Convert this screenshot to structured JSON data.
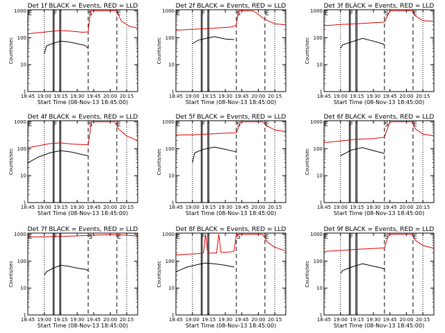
{
  "figure": {
    "shared_xlabel": "Start Time (08-Nov-13 18:45:00)",
    "shared_ylabel": "Counts/sec",
    "y_ticks": [
      "1",
      "10",
      "100",
      "1000"
    ],
    "x_ticks": [
      "18:45",
      "19:00",
      "19:15",
      "19:30",
      "19:45",
      "20:00",
      "20:15"
    ]
  },
  "chart_data": [
    {
      "type": "line",
      "title": "Det 1f BLACK = Events, RED = LLD",
      "xlabel": "Start Time (08-Nov-13 18:45:00)",
      "ylabel": "Counts/sec",
      "y_scale": "log",
      "ylim": [
        1,
        1100
      ],
      "x_ticks": [
        "18:45",
        "19:00",
        "19:15",
        "19:30",
        "19:45",
        "20:00",
        "20:15"
      ],
      "x_range": [
        "18:45",
        "20:25"
      ],
      "markers": [
        "E",
        "F",
        "S",
        "E"
      ],
      "series": [
        {
          "name": "Events",
          "color": "#000000",
          "points": [
            [
              "19:00",
              25
            ],
            [
              "19:02",
              50
            ],
            [
              "19:08",
              62
            ],
            [
              "19:15",
              75
            ],
            [
              "19:22",
              70
            ],
            [
              "19:30",
              60
            ],
            [
              "19:37",
              52
            ],
            [
              "19:40",
              40
            ]
          ]
        },
        {
          "name": "LLD",
          "color": "#dd0000",
          "points": [
            [
              "18:45",
              140
            ],
            [
              "18:55",
              155
            ],
            [
              "19:05",
              170
            ],
            [
              "19:15",
              185
            ],
            [
              "19:25",
              175
            ],
            [
              "19:35",
              160
            ],
            [
              "19:40",
              165
            ],
            [
              "19:42",
              1000
            ],
            [
              "20:06",
              1000
            ],
            [
              "20:10",
              420
            ],
            [
              "20:18",
              260
            ],
            [
              "20:25",
              230
            ]
          ]
        }
      ]
    },
    {
      "type": "line",
      "title": "Det 2f BLACK = Events, RED = LLD",
      "xlabel": "Start Time (08-Nov-13 18:45:00)",
      "ylabel": "Counts/sec",
      "y_scale": "log",
      "ylim": [
        1,
        1100
      ],
      "x_ticks": [
        "18:45",
        "19:00",
        "19:15",
        "19:30",
        "19:45",
        "20:00",
        "20:15"
      ],
      "x_range": [
        "18:45",
        "20:25"
      ],
      "markers": [
        "E",
        "F",
        "S",
        "E"
      ],
      "series": [
        {
          "name": "Events",
          "color": "#000000",
          "points": [
            [
              "19:00",
              60
            ],
            [
              "19:05",
              80
            ],
            [
              "19:10",
              90
            ],
            [
              "19:20",
              110
            ],
            [
              "19:30",
              90
            ],
            [
              "19:38",
              85
            ]
          ]
        },
        {
          "name": "LLD",
          "color": "#dd0000",
          "points": [
            [
              "18:45",
              190
            ],
            [
              "19:00",
              205
            ],
            [
              "19:15",
              220
            ],
            [
              "19:25",
              235
            ],
            [
              "19:35",
              250
            ],
            [
              "19:40",
              290
            ],
            [
              "19:42",
              1000
            ],
            [
              "19:55",
              1000
            ],
            [
              "19:58",
              850
            ],
            [
              "20:06",
              480
            ],
            [
              "20:15",
              330
            ],
            [
              "20:25",
              300
            ]
          ]
        }
      ]
    },
    {
      "type": "line",
      "title": "Det 3f BLACK = Events, RED = LLD",
      "xlabel": "Start Time (08-Nov-13 18:45:00)",
      "ylabel": "Counts/sec",
      "y_scale": "log",
      "ylim": [
        1,
        1100
      ],
      "x_ticks": [
        "18:45",
        "19:00",
        "19:15",
        "19:30",
        "19:45",
        "20:00",
        "20:15"
      ],
      "x_range": [
        "18:45",
        "20:25"
      ],
      "markers": [
        "E",
        "F",
        "S",
        "E"
      ],
      "series": [
        {
          "name": "Events",
          "color": "#000000",
          "points": [
            [
              "19:00",
              40
            ],
            [
              "19:02",
              55
            ],
            [
              "19:10",
              70
            ],
            [
              "19:20",
              95
            ],
            [
              "19:30",
              75
            ],
            [
              "19:38",
              60
            ],
            [
              "19:40",
              55
            ]
          ]
        },
        {
          "name": "LLD",
          "color": "#dd0000",
          "points": [
            [
              "18:45",
              280
            ],
            [
              "19:00",
              310
            ],
            [
              "19:15",
              330
            ],
            [
              "19:30",
              360
            ],
            [
              "19:40",
              380
            ],
            [
              "19:45",
              1000
            ],
            [
              "20:06",
              1000
            ],
            [
              "20:08",
              650
            ],
            [
              "20:15",
              430
            ],
            [
              "20:25",
              410
            ]
          ]
        }
      ]
    },
    {
      "type": "line",
      "title": "Det 4f BLACK = Events, RED = LLD",
      "xlabel": "Start Time (08-Nov-13 18:45:00)",
      "ylabel": "Counts/sec",
      "y_scale": "log",
      "ylim": [
        1,
        1100
      ],
      "x_ticks": [
        "18:45",
        "19:00",
        "19:15",
        "19:30",
        "19:45",
        "20:00",
        "20:15"
      ],
      "x_range": [
        "18:45",
        "20:25"
      ],
      "markers": [
        "E",
        "F",
        "S",
        "E"
      ],
      "series": [
        {
          "name": "Events",
          "color": "#000000",
          "points": [
            [
              "18:45",
              30
            ],
            [
              "18:55",
              50
            ],
            [
              "19:05",
              70
            ],
            [
              "19:15",
              85
            ],
            [
              "19:25",
              75
            ],
            [
              "19:35",
              60
            ],
            [
              "19:40",
              55
            ]
          ]
        },
        {
          "name": "LLD",
          "color": "#dd0000",
          "points": [
            [
              "18:45",
              110
            ],
            [
              "18:55",
              130
            ],
            [
              "19:05",
              155
            ],
            [
              "19:15",
              165
            ],
            [
              "19:25",
              150
            ],
            [
              "19:40",
              140
            ],
            [
              "19:43",
              1000
            ],
            [
              "20:04",
              1000
            ],
            [
              "20:08",
              520
            ],
            [
              "20:15",
              300
            ],
            [
              "20:25",
              200
            ]
          ]
        }
      ]
    },
    {
      "type": "line",
      "title": "Det 5f BLACK = Events, RED = LLD",
      "xlabel": "Start Time (08-Nov-13 18:45:00)",
      "ylabel": "Counts/sec",
      "y_scale": "log",
      "ylim": [
        1,
        1100
      ],
      "x_ticks": [
        "18:45",
        "19:00",
        "19:15",
        "19:30",
        "19:45",
        "20:00",
        "20:15"
      ],
      "x_range": [
        "18:45",
        "20:25"
      ],
      "markers": [
        "E",
        "F",
        "S",
        "E"
      ],
      "series": [
        {
          "name": "Events",
          "color": "#000000",
          "points": [
            [
              "19:00",
              30
            ],
            [
              "19:02",
              70
            ],
            [
              "19:10",
              95
            ],
            [
              "19:20",
              115
            ],
            [
              "19:30",
              95
            ],
            [
              "19:38",
              80
            ],
            [
              "19:40",
              75
            ]
          ]
        },
        {
          "name": "LLD",
          "color": "#dd0000",
          "points": [
            [
              "18:45",
              320
            ],
            [
              "19:00",
              330
            ],
            [
              "19:15",
              355
            ],
            [
              "19:30",
              380
            ],
            [
              "19:40",
              390
            ],
            [
              "19:44",
              1000
            ],
            [
              "20:04",
              1000
            ],
            [
              "20:08",
              700
            ],
            [
              "20:15",
              500
            ],
            [
              "20:25",
              430
            ]
          ]
        }
      ]
    },
    {
      "type": "line",
      "title": "Det 6f BLACK = Events, RED = LLD",
      "xlabel": "Start Time (08-Nov-13 18:45:00)",
      "ylabel": "Counts/sec",
      "y_scale": "log",
      "ylim": [
        1,
        1100
      ],
      "x_ticks": [
        "18:45",
        "19:00",
        "19:15",
        "19:30",
        "19:45",
        "20:00",
        "20:15"
      ],
      "x_range": [
        "18:45",
        "20:25"
      ],
      "markers": [
        "E",
        "F",
        "S",
        "E"
      ],
      "series": [
        {
          "name": "Events",
          "color": "#000000",
          "points": [
            [
              "19:00",
              55
            ],
            [
              "19:05",
              70
            ],
            [
              "19:10",
              90
            ],
            [
              "19:20",
              110
            ],
            [
              "19:30",
              85
            ],
            [
              "19:38",
              70
            ],
            [
              "19:40",
              65
            ]
          ]
        },
        {
          "name": "LLD",
          "color": "#dd0000",
          "points": [
            [
              "18:45",
              170
            ],
            [
              "19:00",
              195
            ],
            [
              "19:15",
              225
            ],
            [
              "19:30",
              240
            ],
            [
              "19:40",
              270
            ],
            [
              "19:45",
              1000
            ],
            [
              "20:05",
              1000
            ],
            [
              "20:08",
              550
            ],
            [
              "20:15",
              350
            ],
            [
              "20:25",
              300
            ]
          ]
        }
      ]
    },
    {
      "type": "line",
      "title": "Det 7f BLACK = Events, RED = LLD",
      "xlabel": "Start Time (08-Nov-13 18:45:00)",
      "ylabel": "Counts/sec",
      "y_scale": "log",
      "ylim": [
        1,
        1100
      ],
      "x_ticks": [
        "18:45",
        "19:00",
        "19:15",
        "19:30",
        "19:45",
        "20:00",
        "20:15"
      ],
      "x_range": [
        "18:45",
        "20:25"
      ],
      "markers": [
        "E",
        "F",
        "S",
        "E"
      ],
      "series": [
        {
          "name": "Events",
          "color": "#000000",
          "points": [
            [
              "19:00",
              30
            ],
            [
              "19:02",
              40
            ],
            [
              "19:08",
              55
            ],
            [
              "19:15",
              70
            ],
            [
              "19:22",
              65
            ],
            [
              "19:30",
              55
            ],
            [
              "19:37",
              50
            ],
            [
              "19:40",
              45
            ]
          ]
        },
        {
          "name": "LLD",
          "color": "#dd0000",
          "points": [
            [
              "18:45",
              780
            ],
            [
              "19:00",
              800
            ],
            [
              "19:15",
              830
            ],
            [
              "19:30",
              870
            ],
            [
              "19:45",
              920
            ],
            [
              "20:00",
              960
            ],
            [
              "20:15",
              920
            ],
            [
              "20:25",
              850
            ]
          ]
        }
      ]
    },
    {
      "type": "line",
      "title": "Det 8f BLACK = Events, RED = LLD",
      "xlabel": "Start Time (08-Nov-13 18:45:00)",
      "ylabel": "Counts/sec",
      "y_scale": "log",
      "ylim": [
        1,
        1100
      ],
      "x_ticks": [
        "18:45",
        "19:00",
        "19:15",
        "19:30",
        "19:45",
        "20:00",
        "20:15"
      ],
      "x_range": [
        "18:45",
        "20:25"
      ],
      "markers": [
        "E",
        "F",
        "S",
        "E"
      ],
      "series": [
        {
          "name": "Events",
          "color": "#000000",
          "points": [
            [
              "18:45",
              40
            ],
            [
              "18:55",
              60
            ],
            [
              "19:05",
              75
            ],
            [
              "19:12",
              85
            ],
            [
              "19:20",
              80
            ],
            [
              "19:30",
              70
            ],
            [
              "19:38",
              60
            ]
          ]
        },
        {
          "name": "LLD",
          "color": "#dd0000",
          "points": [
            [
              "18:45",
              170
            ],
            [
              "18:55",
              180
            ],
            [
              "19:05",
              190
            ],
            [
              "19:10",
              200
            ],
            [
              "19:12",
              1000
            ],
            [
              "19:14",
              200
            ],
            [
              "19:22",
              200
            ],
            [
              "19:24",
              1000
            ],
            [
              "19:26",
              210
            ],
            [
              "19:35",
              220
            ],
            [
              "19:38",
              240
            ],
            [
              "19:40",
              1000
            ],
            [
              "20:04",
              1000
            ],
            [
              "20:08",
              520
            ],
            [
              "20:15",
              330
            ],
            [
              "20:25",
              240
            ]
          ]
        }
      ]
    },
    {
      "type": "line",
      "title": "Det 9f BLACK = Events, RED = LLD",
      "xlabel": "Start Time (08-Nov-13 18:45:00)",
      "ylabel": "Counts/sec",
      "y_scale": "log",
      "ylim": [
        1,
        1100
      ],
      "x_ticks": [
        "18:45",
        "19:00",
        "19:15",
        "19:30",
        "19:45",
        "20:00",
        "20:15"
      ],
      "x_range": [
        "18:45",
        "20:25"
      ],
      "markers": [
        "E",
        "F",
        "S",
        "E"
      ],
      "series": [
        {
          "name": "Events",
          "color": "#000000",
          "points": [
            [
              "19:00",
              35
            ],
            [
              "19:02",
              45
            ],
            [
              "19:10",
              60
            ],
            [
              "19:20",
              80
            ],
            [
              "19:30",
              65
            ],
            [
              "19:38",
              55
            ],
            [
              "19:40",
              50
            ]
          ]
        },
        {
          "name": "LLD",
          "color": "#dd0000",
          "points": [
            [
              "18:45",
              230
            ],
            [
              "19:00",
              250
            ],
            [
              "19:15",
              275
            ],
            [
              "19:30",
              295
            ],
            [
              "19:40",
              310
            ],
            [
              "19:44",
              1000
            ],
            [
              "20:05",
              1000
            ],
            [
              "20:08",
              600
            ],
            [
              "20:15",
              380
            ],
            [
              "20:25",
              300
            ]
          ]
        }
      ]
    }
  ],
  "vlines": {
    "dotted": [
      "19:00",
      "20:15"
    ],
    "solid_pairs": [
      [
        "19:08",
        "19:09"
      ],
      [
        "19:14",
        "19:15"
      ]
    ],
    "dashed": [
      "19:40",
      "20:06"
    ]
  }
}
